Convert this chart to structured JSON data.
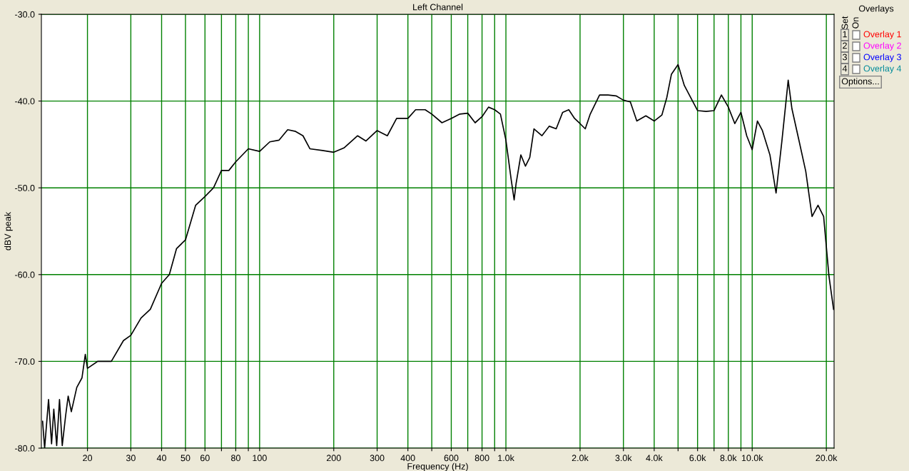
{
  "chart_data": {
    "type": "line",
    "title": "Left Channel",
    "xlabel": "Frequency (Hz)",
    "ylabel": "dBV peak",
    "log": "x",
    "grid": true,
    "marker": "none",
    "line_style": "solid",
    "xlim": [
      13,
      21500
    ],
    "ylim": [
      -80,
      -30
    ],
    "xticks": [
      {
        "value": 20,
        "label": "20"
      },
      {
        "value": 30,
        "label": "30"
      },
      {
        "value": 40,
        "label": "40"
      },
      {
        "value": 50,
        "label": "50"
      },
      {
        "value": 60,
        "label": "60"
      },
      {
        "value": 70,
        "label": null
      },
      {
        "value": 80,
        "label": "80"
      },
      {
        "value": 90,
        "label": null
      },
      {
        "value": 100,
        "label": "100"
      },
      {
        "value": 200,
        "label": "200"
      },
      {
        "value": 300,
        "label": "300"
      },
      {
        "value": 400,
        "label": "400"
      },
      {
        "value": 500,
        "label": null
      },
      {
        "value": 600,
        "label": "600"
      },
      {
        "value": 700,
        "label": null
      },
      {
        "value": 800,
        "label": "800"
      },
      {
        "value": 900,
        "label": null
      },
      {
        "value": 1000,
        "label": "1.0k"
      },
      {
        "value": 2000,
        "label": "2.0k"
      },
      {
        "value": 3000,
        "label": "3.0k"
      },
      {
        "value": 4000,
        "label": "4.0k"
      },
      {
        "value": 5000,
        "label": null
      },
      {
        "value": 6000,
        "label": "6.0k"
      },
      {
        "value": 7000,
        "label": null
      },
      {
        "value": 8000,
        "label": "8.0k"
      },
      {
        "value": 9000,
        "label": null
      },
      {
        "value": 10000,
        "label": "10.0k"
      },
      {
        "value": 20000,
        "label": "20.0k"
      }
    ],
    "yticks": [
      {
        "value": -30,
        "label": "-30.0"
      },
      {
        "value": -40,
        "label": "-40.0"
      },
      {
        "value": -50,
        "label": "-50.0"
      },
      {
        "value": -60,
        "label": "-60.0"
      },
      {
        "value": -70,
        "label": "-70.0"
      },
      {
        "value": -80,
        "label": "-80.0"
      }
    ],
    "annotations": [
      "Overlays",
      "Set",
      "On",
      "1",
      "2",
      "3",
      "4",
      "Overlay 1",
      "Overlay 2",
      "Overlay 3",
      "Overlay 4",
      "Options..."
    ],
    "series": [
      {
        "color": "#000000",
        "x": [
          13.15,
          13.4,
          13.9,
          14.3,
          14.6,
          15.0,
          15.4,
          15.8,
          16.3,
          16.7,
          17.2,
          18.1,
          19.0,
          19.6,
          20,
          22,
          25,
          28,
          30,
          33,
          36,
          40,
          43,
          46,
          50,
          55,
          60,
          65,
          70,
          75,
          80,
          90,
          100,
          110,
          120,
          130,
          140,
          150,
          160,
          180,
          200,
          220,
          250,
          270,
          300,
          330,
          360,
          400,
          430,
          470,
          500,
          550,
          600,
          650,
          700,
          750,
          800,
          850,
          900,
          950,
          1000,
          1050,
          1080,
          1100,
          1150,
          1200,
          1250,
          1300,
          1400,
          1500,
          1600,
          1700,
          1800,
          1900,
          2000,
          2100,
          2200,
          2400,
          2600,
          2800,
          3000,
          3200,
          3400,
          3700,
          4000,
          4300,
          4500,
          4700,
          5000,
          5300,
          5700,
          6000,
          6500,
          7000,
          7500,
          8000,
          8500,
          9000,
          9500,
          10000,
          10500,
          11000,
          11800,
          12500,
          13200,
          14000,
          14500,
          15500,
          16500,
          17500,
          18500,
          19500,
          20500,
          21400
        ],
        "values": [
          -76.9,
          -80,
          -74.4,
          -79.5,
          -75.5,
          -79.7,
          -74.4,
          -79.7,
          -76.3,
          -74,
          -75.8,
          -73,
          -71.9,
          -69.2,
          -70.8,
          -70,
          -70,
          -67.6,
          -67,
          -65,
          -64,
          -61,
          -60,
          -57,
          -56,
          -52,
          -51,
          -50,
          -48,
          -48,
          -47,
          -45.5,
          -45.8,
          -44.7,
          -44.5,
          -43.3,
          -43.5,
          -44,
          -45.5,
          -45.7,
          -45.9,
          -45.4,
          -44,
          -44.6,
          -43.4,
          -44,
          -42,
          -42,
          -41,
          -41,
          -41.5,
          -42.5,
          -42,
          -41.5,
          -41.4,
          -42.5,
          -41.8,
          -40.7,
          -41,
          -41.5,
          -44.5,
          -49,
          -51.4,
          -49.5,
          -46.2,
          -47.5,
          -46.5,
          -43.2,
          -44,
          -42.9,
          -43.2,
          -41.3,
          -41,
          -42,
          -42.6,
          -43.2,
          -41.5,
          -39.3,
          -39.3,
          -39.4,
          -39.9,
          -40.1,
          -42.3,
          -41.7,
          -42.3,
          -41.6,
          -39.6,
          -36.9,
          -35.8,
          -38.2,
          -39.9,
          -41.1,
          -41.2,
          -41.1,
          -39.3,
          -40.7,
          -42.6,
          -41.3,
          -44,
          -45.6,
          -42.3,
          -43.4,
          -46.2,
          -50.6,
          -44.6,
          -37.6,
          -40.9,
          -44.6,
          -48.1,
          -53.3,
          -52,
          -53.3,
          -60.2,
          -64
        ]
      }
    ]
  }
}
